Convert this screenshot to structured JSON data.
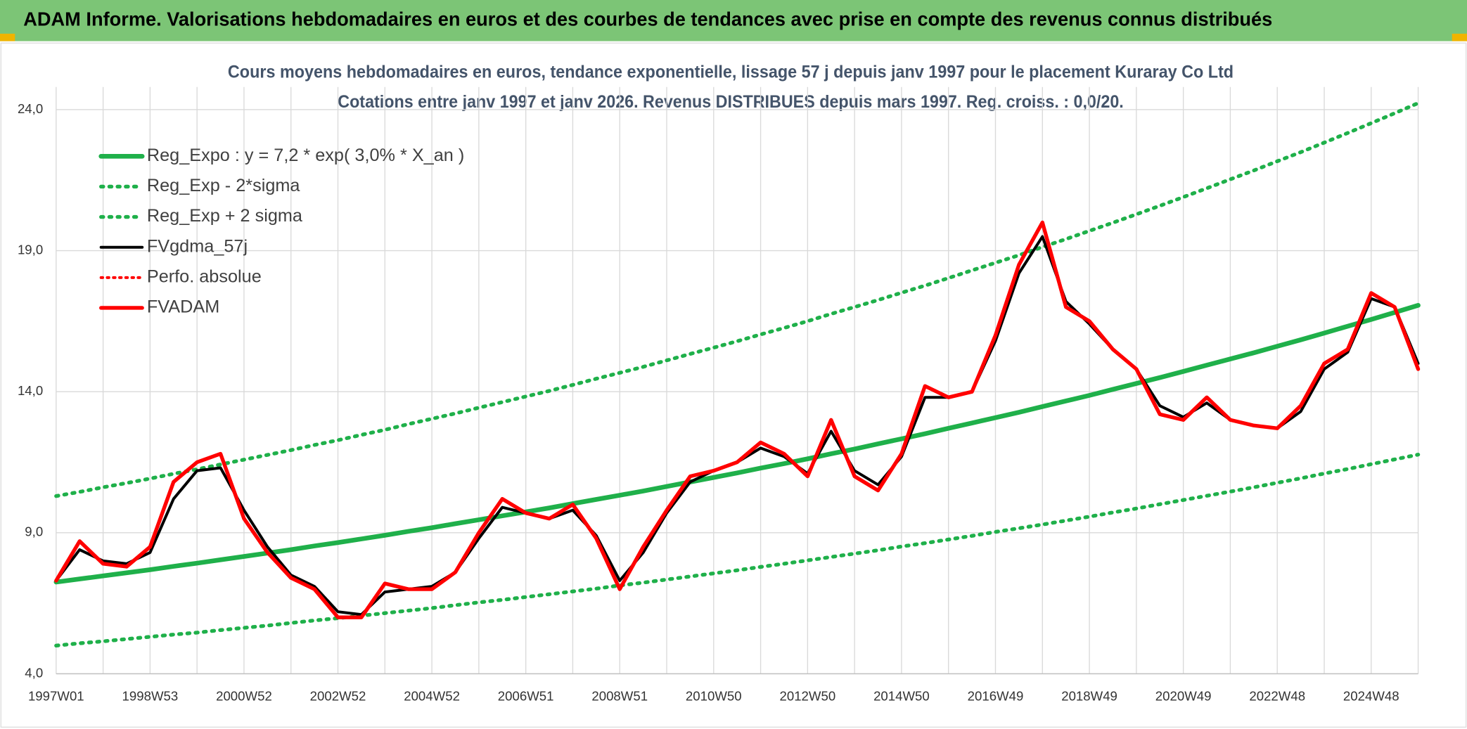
{
  "chart_data": {
    "type": "line",
    "title": "ADAM Informe. Valorisations hebdomadaires en euros et des courbes de tendances avec prise en compte des revenus connus distribués",
    "subtitle": [
      "Cours moyens hebdomadaires en euros, tendance exponentielle, lissage 57 j depuis janv 1997 pour le placement Kuraray Co Ltd",
      "Cotations entre janv 1997 et janv 2026. Revenus DISTRIBUES depuis mars 1997. Reg. croiss. : 0,0/20."
    ],
    "categories": [
      "1997W01",
      null,
      null,
      null,
      "1998W53",
      null,
      null,
      null,
      "2000W52",
      null,
      null,
      null,
      "2002W52",
      null,
      null,
      null,
      "2004W52",
      null,
      null,
      null,
      "2006W51",
      null,
      null,
      null,
      "2008W51",
      null,
      null,
      null,
      "2010W50",
      null,
      null,
      null,
      "2012W50",
      null,
      null,
      null,
      "2014W50",
      null,
      null,
      null,
      "2016W49",
      null,
      null,
      null,
      "2018W49",
      null,
      null,
      null,
      "2020W49",
      null,
      null,
      null,
      "2022W48",
      null,
      null,
      null,
      "2024W48",
      null,
      null
    ],
    "ylim": [
      4,
      24.8
    ],
    "yticks": [
      {
        "value": 4,
        "label": "4,0"
      },
      {
        "value": 9,
        "label": "9,0"
      },
      {
        "value": 14,
        "label": "14,0"
      },
      {
        "value": 19,
        "label": "19,0"
      },
      {
        "value": 24,
        "label": "24,0"
      }
    ],
    "grid": true,
    "legend": "upper-left",
    "series": [
      {
        "name": "Reg_Expo : y = 7,2 * exp( 3,0% *  X_an )",
        "color": "#1fb04a",
        "style": "solid",
        "width": 5,
        "values": [
          7.25,
          7.36,
          7.47,
          7.58,
          7.69,
          7.81,
          7.92,
          8.04,
          8.16,
          8.28,
          8.4,
          8.53,
          8.65,
          8.78,
          8.91,
          9.05,
          9.18,
          9.32,
          9.46,
          9.6,
          9.74,
          9.88,
          10.03,
          10.18,
          10.33,
          10.48,
          10.64,
          10.8,
          10.96,
          11.12,
          11.29,
          11.45,
          11.62,
          11.8,
          11.97,
          12.15,
          12.33,
          12.51,
          12.7,
          12.89,
          13.08,
          13.27,
          13.47,
          13.67,
          13.87,
          14.08,
          14.29,
          14.5,
          14.72,
          14.94,
          15.16,
          15.38,
          15.61,
          15.84,
          16.08,
          16.32,
          16.56,
          16.81,
          17.06
        ]
      },
      {
        "name": "Reg_Exp - 2*sigma",
        "color": "#1fb04a",
        "style": "dotted",
        "width": 4,
        "values": [
          5.0,
          5.08,
          5.15,
          5.23,
          5.31,
          5.39,
          5.46,
          5.55,
          5.63,
          5.71,
          5.8,
          5.89,
          5.97,
          6.06,
          6.15,
          6.24,
          6.33,
          6.43,
          6.53,
          6.62,
          6.72,
          6.82,
          6.92,
          7.02,
          7.13,
          7.23,
          7.34,
          7.45,
          7.56,
          7.67,
          7.79,
          7.9,
          8.02,
          8.14,
          8.26,
          8.38,
          8.51,
          8.63,
          8.76,
          8.89,
          9.03,
          9.16,
          9.29,
          9.43,
          9.57,
          9.72,
          9.86,
          10.01,
          10.16,
          10.31,
          10.46,
          10.61,
          10.77,
          10.93,
          11.1,
          11.26,
          11.43,
          11.6,
          11.77
        ]
      },
      {
        "name": "Reg_Exp + 2 sigma",
        "color": "#1fb04a",
        "style": "dotted",
        "width": 4,
        "values": [
          10.3,
          10.45,
          10.61,
          10.76,
          10.92,
          11.09,
          11.25,
          11.42,
          11.59,
          11.76,
          11.93,
          12.11,
          12.28,
          12.47,
          12.65,
          12.85,
          13.04,
          13.23,
          13.43,
          13.63,
          13.83,
          14.03,
          14.24,
          14.46,
          14.67,
          14.88,
          15.11,
          15.34,
          15.56,
          15.79,
          16.03,
          16.26,
          16.5,
          16.76,
          17.0,
          17.25,
          17.51,
          17.76,
          18.03,
          18.3,
          18.57,
          18.84,
          19.13,
          19.41,
          19.7,
          19.99,
          20.29,
          20.59,
          20.9,
          21.21,
          21.53,
          21.84,
          22.17,
          22.49,
          22.83,
          23.17,
          23.52,
          23.87,
          24.23
        ]
      },
      {
        "name": "FVgdma_57j",
        "color": "#000000",
        "style": "solid",
        "width": 3,
        "values": [
          7.3,
          8.4,
          8.0,
          7.9,
          8.3,
          10.2,
          11.2,
          11.3,
          9.8,
          8.5,
          7.5,
          7.1,
          6.2,
          6.1,
          6.9,
          7.0,
          7.1,
          7.6,
          8.8,
          9.9,
          9.7,
          9.5,
          9.8,
          8.9,
          7.3,
          8.3,
          9.7,
          10.8,
          11.2,
          11.5,
          12.0,
          11.7,
          11.1,
          12.6,
          11.2,
          10.7,
          11.7,
          13.8,
          13.8,
          14.0,
          15.8,
          18.2,
          19.5,
          17.2,
          16.4,
          15.5,
          14.8,
          13.5,
          13.1,
          13.6,
          13.0,
          12.8,
          12.7,
          13.3,
          14.8,
          15.4,
          17.3,
          17.0,
          15.0
        ]
      },
      {
        "name": "Perfo. absolue",
        "color": "#ff0000",
        "style": "dotted",
        "width": 3,
        "values": [
          null,
          null,
          null,
          null,
          null,
          null,
          null,
          null,
          null,
          null,
          null,
          null,
          null,
          null,
          null,
          null,
          null,
          null,
          null,
          null,
          null,
          null,
          null,
          null,
          null,
          null,
          null,
          null,
          null,
          null,
          null,
          null,
          null,
          null,
          null,
          null,
          null,
          null,
          null,
          null,
          null,
          null,
          null,
          null,
          null,
          null,
          null,
          null,
          null,
          null,
          null,
          null,
          null,
          null,
          null,
          null,
          null,
          null,
          null
        ]
      },
      {
        "name": "FVADAM",
        "color": "#ff0000",
        "style": "solid",
        "width": 4,
        "values": [
          7.3,
          8.7,
          7.9,
          7.8,
          8.5,
          10.8,
          11.5,
          11.8,
          9.5,
          8.3,
          7.4,
          7.0,
          6.0,
          6.0,
          7.2,
          7.0,
          7.0,
          7.6,
          9.0,
          10.2,
          9.7,
          9.5,
          10.0,
          8.8,
          7.0,
          8.5,
          9.8,
          11.0,
          11.2,
          11.5,
          12.2,
          11.8,
          11.0,
          13.0,
          11.0,
          10.5,
          11.8,
          14.2,
          13.8,
          14.0,
          16.0,
          18.5,
          20.0,
          17.0,
          16.5,
          15.5,
          14.8,
          13.2,
          13.0,
          13.8,
          13.0,
          12.8,
          12.7,
          13.5,
          15.0,
          15.5,
          17.5,
          17.0,
          14.8
        ]
      }
    ]
  }
}
